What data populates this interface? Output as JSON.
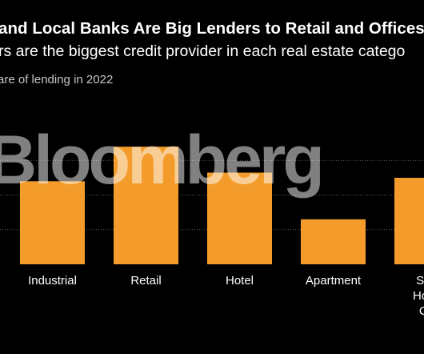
{
  "header": {
    "title": "and Local Banks Are Big Lenders to Retail and Offices",
    "subtitle": "rs are the biggest credit provider in each real estate catego",
    "unit_label": "are of lending in 2022"
  },
  "watermark": {
    "text": "Bloomberg"
  },
  "colors": {
    "background": "#000000",
    "bar": "#F39C2B",
    "gridline": "#5a5a5a",
    "text": "#ffffff"
  },
  "chart_data": {
    "type": "bar",
    "title": "and Local Banks Are Big Lenders to Retail and Offices",
    "subtitle": "rs are the biggest credit provider in each real estate catego",
    "ylabel": "are of lending in 2022",
    "categories": [
      [
        "Industrial"
      ],
      [
        "Retail"
      ],
      [
        "Hotel"
      ],
      [
        "Apartment"
      ],
      [
        "Sen",
        "Hous",
        "Ca"
      ]
    ],
    "values": [
      48,
      68,
      53,
      26,
      50
    ],
    "ylim": [
      0,
      70
    ],
    "grid": true,
    "legend": "none"
  }
}
